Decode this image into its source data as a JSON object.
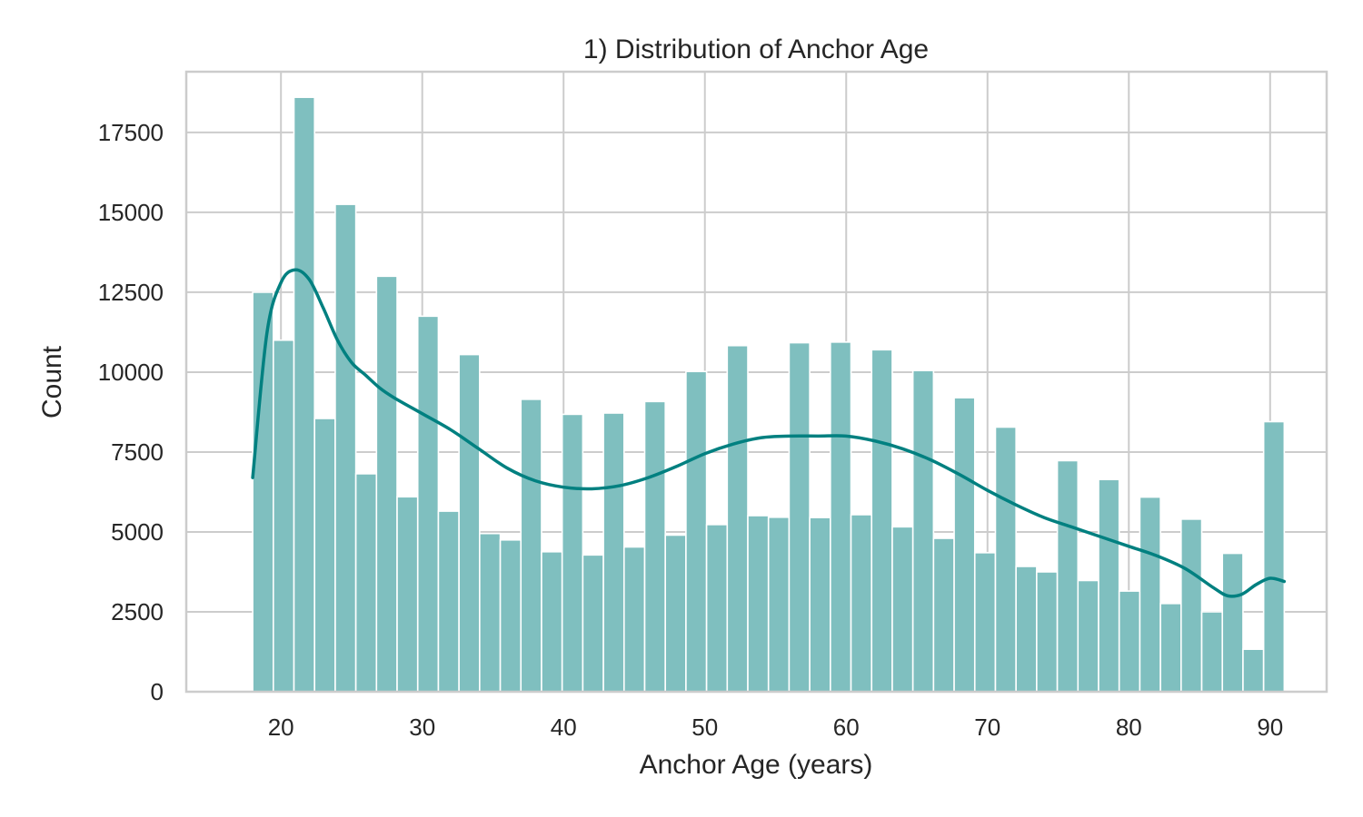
{
  "chart_data": {
    "type": "bar",
    "title": "1) Distribution of Anchor Age",
    "xlabel": "Anchor Age (years)",
    "ylabel": "Count",
    "xlim": [
      13.3,
      94.0
    ],
    "ylim": [
      0,
      19400
    ],
    "xticks": [
      20,
      30,
      40,
      50,
      60,
      70,
      80,
      90
    ],
    "yticks": [
      0,
      2500,
      5000,
      7500,
      10000,
      12500,
      15000,
      17500
    ],
    "grid": true,
    "legend": "none",
    "bin_start": 18,
    "bin_width": 1.46,
    "values": [
      12500,
      11000,
      18600,
      8550,
      15250,
      6820,
      13000,
      6100,
      11750,
      5650,
      10550,
      4950,
      4750,
      9150,
      4380,
      8680,
      4280,
      8720,
      4530,
      9080,
      4900,
      10020,
      5230,
      10830,
      5510,
      5460,
      10920,
      5450,
      10940,
      5540,
      10700,
      5160,
      10050,
      4800,
      9200,
      4350,
      8280,
      3920,
      3750,
      7230,
      3480,
      6640,
      3150,
      6090,
      2760,
      5400,
      2500,
      4330,
      1330,
      8450
    ],
    "kde": {
      "x": [
        18,
        19,
        20,
        21,
        22,
        23,
        24,
        25,
        26,
        27,
        28,
        30,
        32,
        34,
        36,
        38,
        40,
        42,
        44,
        46,
        48,
        50,
        52,
        54,
        56,
        58,
        60,
        62,
        64,
        66,
        68,
        70,
        72,
        74,
        76,
        78,
        80,
        82,
        84,
        86,
        87,
        88,
        89,
        90,
        91
      ],
      "y": [
        6700,
        11200,
        12800,
        13200,
        12900,
        12000,
        11000,
        10300,
        9900,
        9500,
        9200,
        8700,
        8200,
        7600,
        7000,
        6600,
        6400,
        6350,
        6450,
        6700,
        7050,
        7450,
        7750,
        7950,
        8000,
        8000,
        8000,
        7850,
        7600,
        7250,
        6800,
        6300,
        5850,
        5450,
        5150,
        4850,
        4550,
        4250,
        3850,
        3250,
        3000,
        3050,
        3350,
        3550,
        3450
      ]
    },
    "colors": {
      "bar": "#7fbfbf",
      "line": "#008080",
      "grid": "#cccccc",
      "spine": "#cccccc"
    }
  }
}
